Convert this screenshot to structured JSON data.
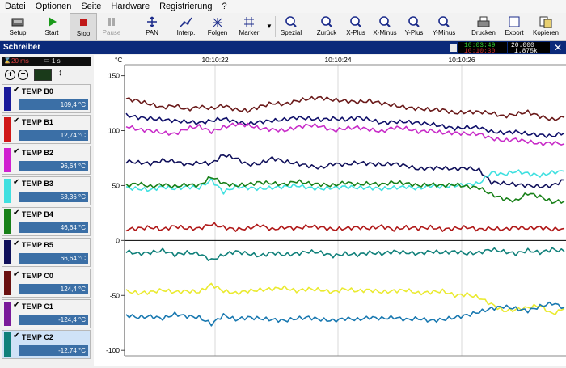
{
  "menu": [
    "Datei",
    "Optionen",
    "Seite",
    "Hardware",
    "Registrierung",
    "?"
  ],
  "toolbar": [
    {
      "label": "Setup",
      "icon": "setup-icon"
    },
    {
      "label": "Start",
      "icon": "play-icon"
    },
    {
      "label": "Stop",
      "icon": "stop-icon",
      "pressed": true
    },
    {
      "label": "Pause",
      "icon": "pause-icon",
      "disabled": true
    },
    {
      "label": "PAN",
      "icon": "pan-icon"
    },
    {
      "label": "Interp.",
      "icon": "interpolate-icon"
    },
    {
      "label": "Folgen",
      "icon": "follow-icon"
    },
    {
      "label": "Marker",
      "icon": "marker-icon"
    },
    {
      "label": "Spezial",
      "icon": "zoom-special-icon"
    },
    {
      "label": "Zurück",
      "icon": "zoom-back-icon"
    },
    {
      "label": "X-Plus",
      "icon": "zoom-x-plus-icon"
    },
    {
      "label": "X-Minus",
      "icon": "zoom-x-minus-icon"
    },
    {
      "label": "Y-Plus",
      "icon": "zoom-y-plus-icon"
    },
    {
      "label": "Y-Minus",
      "icon": "zoom-y-minus-icon"
    },
    {
      "label": "Drucken",
      "icon": "printer-icon"
    },
    {
      "label": "Export",
      "icon": "export-icon"
    },
    {
      "label": "Kopieren",
      "icon": "copy-icon"
    }
  ],
  "window": {
    "title": "Schreiber",
    "time1": "10:03:49",
    "time2": "10:10:30",
    "val1": "20.000",
    "val2": "1.875k"
  },
  "status": {
    "interval": "20 ms",
    "period": "1 s"
  },
  "channels": [
    {
      "name": "TEMP B0",
      "value": "109,4 °C",
      "color": "#1a1a9a"
    },
    {
      "name": "TEMP B1",
      "value": "12,74 °C",
      "color": "#d01818"
    },
    {
      "name": "TEMP B2",
      "value": "96,64 °C",
      "color": "#d020d0"
    },
    {
      "name": "TEMP B3",
      "value": "53,36 °C",
      "color": "#40e0e0"
    },
    {
      "name": "TEMP B4",
      "value": "46,64 °C",
      "color": "#188018"
    },
    {
      "name": "TEMP B5",
      "value": "66,64 °C",
      "color": "#10105a"
    },
    {
      "name": "TEMP C0",
      "value": "124,4 °C",
      "color": "#6a1010"
    },
    {
      "name": "TEMP C1",
      "value": "-124,4 °C",
      "color": "#7a1a9a"
    },
    {
      "name": "TEMP C2",
      "value": "-12,74 °C",
      "color": "#10807a",
      "selected": true
    }
  ],
  "chart_data": {
    "type": "line",
    "ylabel": "°C",
    "ylim": [
      -105,
      160
    ],
    "yticks": [
      150,
      100,
      50,
      0,
      -50,
      -100
    ],
    "xticks": [
      "10:10:22",
      "10:10:24",
      "10:10:26"
    ],
    "series": [
      {
        "color": "#6a1a1a",
        "values": [
          129,
          127,
          124,
          121,
          123,
          119,
          122,
          120,
          123,
          119,
          118,
          122,
          125,
          124,
          127,
          129,
          130,
          128,
          127,
          126,
          127,
          125,
          123,
          121,
          120,
          119,
          119,
          116,
          117,
          117,
          116,
          113,
          115,
          117,
          113,
          110,
          112
        ]
      },
      {
        "color": "#10106a",
        "values": [
          114,
          112,
          111,
          110,
          109,
          108,
          107,
          109,
          111,
          108,
          106,
          108,
          109,
          110,
          112,
          111,
          110,
          111,
          110,
          112,
          110,
          107,
          108,
          108,
          107,
          106,
          104,
          102,
          103,
          103,
          99,
          98,
          99,
          97,
          96,
          95,
          98
        ]
      },
      {
        "color": "#c82cc8",
        "values": [
          104,
          101,
          100,
          98,
          97,
          102,
          104,
          99,
          103,
          106,
          105,
          102,
          101,
          100,
          103,
          105,
          104,
          100,
          102,
          103,
          101,
          99,
          103,
          102,
          99,
          100,
          98,
          98,
          97,
          97,
          93,
          91,
          92,
          90,
          88,
          89,
          88
        ]
      },
      {
        "color": "#10105a",
        "values": [
          72,
          71,
          70,
          73,
          72,
          69,
          71,
          70,
          78,
          75,
          69,
          70,
          75,
          72,
          70,
          68,
          66,
          70,
          69,
          71,
          70,
          69,
          70,
          68,
          65,
          66,
          66,
          65,
          66,
          64,
          53,
          52,
          51,
          50,
          49,
          50,
          55
        ]
      },
      {
        "color": "#40e0e0",
        "values": [
          48,
          47,
          46,
          49,
          47,
          49,
          48,
          55,
          44,
          49,
          48,
          47,
          48,
          49,
          50,
          48,
          47,
          48,
          49,
          48,
          48,
          47,
          48,
          49,
          47,
          50,
          49,
          50,
          51,
          52,
          62,
          60,
          63,
          61,
          59,
          62,
          63
        ]
      },
      {
        "color": "#188018",
        "values": [
          50,
          52,
          49,
          51,
          49,
          51,
          50,
          58,
          52,
          50,
          51,
          53,
          52,
          51,
          54,
          52,
          51,
          50,
          53,
          51,
          52,
          51,
          53,
          52,
          50,
          51,
          50,
          51,
          49,
          48,
          42,
          38,
          36,
          43,
          40,
          35,
          36
        ]
      },
      {
        "color": "#b01818",
        "values": [
          10,
          11,
          12,
          10,
          13,
          11,
          11,
          15,
          12,
          10,
          11,
          14,
          10,
          12,
          11,
          13,
          12,
          10,
          11,
          12,
          11,
          13,
          10,
          12,
          11,
          12,
          10,
          11,
          12,
          10,
          11,
          10,
          12,
          11,
          12,
          10,
          11
        ]
      },
      {
        "color": "#10807a",
        "values": [
          -10,
          -12,
          -11,
          -9,
          -13,
          -11,
          -12,
          -18,
          -13,
          -10,
          -12,
          -14,
          -11,
          -13,
          -12,
          -10,
          -11,
          -14,
          -12,
          -13,
          -11,
          -12,
          -10,
          -11,
          -12,
          -10,
          -11,
          -10,
          -12,
          -11,
          -8,
          -10,
          -12,
          -9,
          -11,
          -8,
          -10
        ]
      },
      {
        "color": "#eaea30",
        "values": [
          -46,
          -48,
          -47,
          -45,
          -47,
          -46,
          -47,
          -40,
          -46,
          -48,
          -46,
          -45,
          -44,
          -43,
          -46,
          -44,
          -45,
          -47,
          -44,
          -46,
          -45,
          -47,
          -46,
          -45,
          -48,
          -47,
          -46,
          -50,
          -49,
          -52,
          -58,
          -64,
          -63,
          -61,
          -59,
          -67,
          -62
        ]
      },
      {
        "color": "#1878b0",
        "values": [
          -68,
          -70,
          -69,
          -71,
          -67,
          -69,
          -70,
          -76,
          -68,
          -72,
          -70,
          -71,
          -72,
          -73,
          -71,
          -70,
          -72,
          -73,
          -71,
          -72,
          -70,
          -71,
          -70,
          -72,
          -71,
          -73,
          -72,
          -70,
          -68,
          -65,
          -62,
          -60,
          -62,
          -64,
          -60,
          -57,
          -61
        ]
      }
    ]
  }
}
